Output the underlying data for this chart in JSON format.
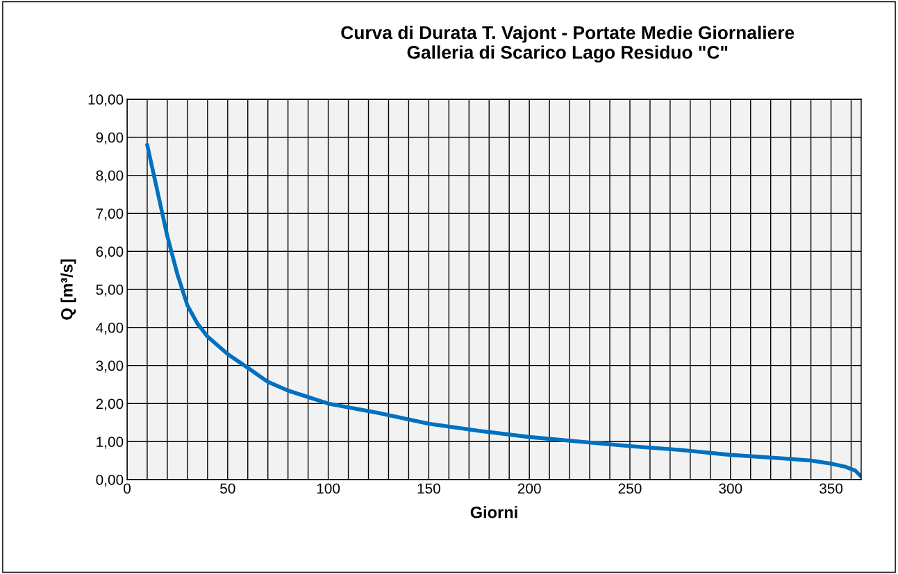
{
  "chart_data": {
    "type": "line",
    "title": "Curva di Durata T. Vajont - Portate Medie Giornaliere\nGalleria di Scarico Lago Residuo \"C\"",
    "xlabel": "Giorni",
    "ylabel": "Q [m³/s]",
    "x": [
      10,
      15,
      20,
      25,
      30,
      35,
      40,
      50,
      60,
      70,
      80,
      100,
      125,
      150,
      175,
      200,
      225,
      250,
      275,
      300,
      325,
      340,
      350,
      357,
      362,
      365
    ],
    "series": [
      {
        "color": "#0070c0",
        "values": [
          8.8,
          7.6,
          6.4,
          5.4,
          4.58,
          4.1,
          3.76,
          3.3,
          2.94,
          2.57,
          2.34,
          2.0,
          1.75,
          1.47,
          1.28,
          1.12,
          1.0,
          0.88,
          0.78,
          0.65,
          0.56,
          0.5,
          0.42,
          0.34,
          0.24,
          0.08
        ]
      }
    ],
    "xlim": [
      0,
      365
    ],
    "ylim": [
      0,
      10
    ],
    "xticks": [
      0,
      {
        "value": 10,
        "label": null
      },
      {
        "value": 20,
        "label": null
      },
      {
        "value": 30,
        "label": null
      },
      {
        "value": 40,
        "label": null
      },
      50,
      {
        "value": 60,
        "label": null
      },
      {
        "value": 70,
        "label": null
      },
      {
        "value": 80,
        "label": null
      },
      {
        "value": 90,
        "label": null
      },
      100,
      {
        "value": 110,
        "label": null
      },
      {
        "value": 120,
        "label": null
      },
      {
        "value": 130,
        "label": null
      },
      {
        "value": 140,
        "label": null
      },
      150,
      {
        "value": 160,
        "label": null
      },
      {
        "value": 170,
        "label": null
      },
      {
        "value": 180,
        "label": null
      },
      {
        "value": 190,
        "label": null
      },
      200,
      {
        "value": 210,
        "label": null
      },
      {
        "value": 220,
        "label": null
      },
      {
        "value": 230,
        "label": null
      },
      {
        "value": 240,
        "label": null
      },
      250,
      {
        "value": 260,
        "label": null
      },
      {
        "value": 270,
        "label": null
      },
      {
        "value": 280,
        "label": null
      },
      {
        "value": 290,
        "label": null
      },
      300,
      {
        "value": 310,
        "label": null
      },
      {
        "value": 320,
        "label": null
      },
      {
        "value": 330,
        "label": null
      },
      {
        "value": 340,
        "label": null
      },
      350,
      {
        "value": 360,
        "label": null
      }
    ],
    "yticks": [
      {
        "value": 0,
        "label": "0,00"
      },
      {
        "value": 1,
        "label": "1,00"
      },
      {
        "value": 2,
        "label": "2,00"
      },
      {
        "value": 3,
        "label": "3,00"
      },
      {
        "value": 4,
        "label": "4,00"
      },
      {
        "value": 5,
        "label": "5,00"
      },
      {
        "value": 6,
        "label": "6,00"
      },
      {
        "value": 7,
        "label": "7,00"
      },
      {
        "value": 8,
        "label": "8,00"
      },
      {
        "value": 9,
        "label": "9,00"
      },
      {
        "value": 10,
        "label": "10,00"
      }
    ],
    "grid": true,
    "marker": "none",
    "line_style": "solid"
  }
}
